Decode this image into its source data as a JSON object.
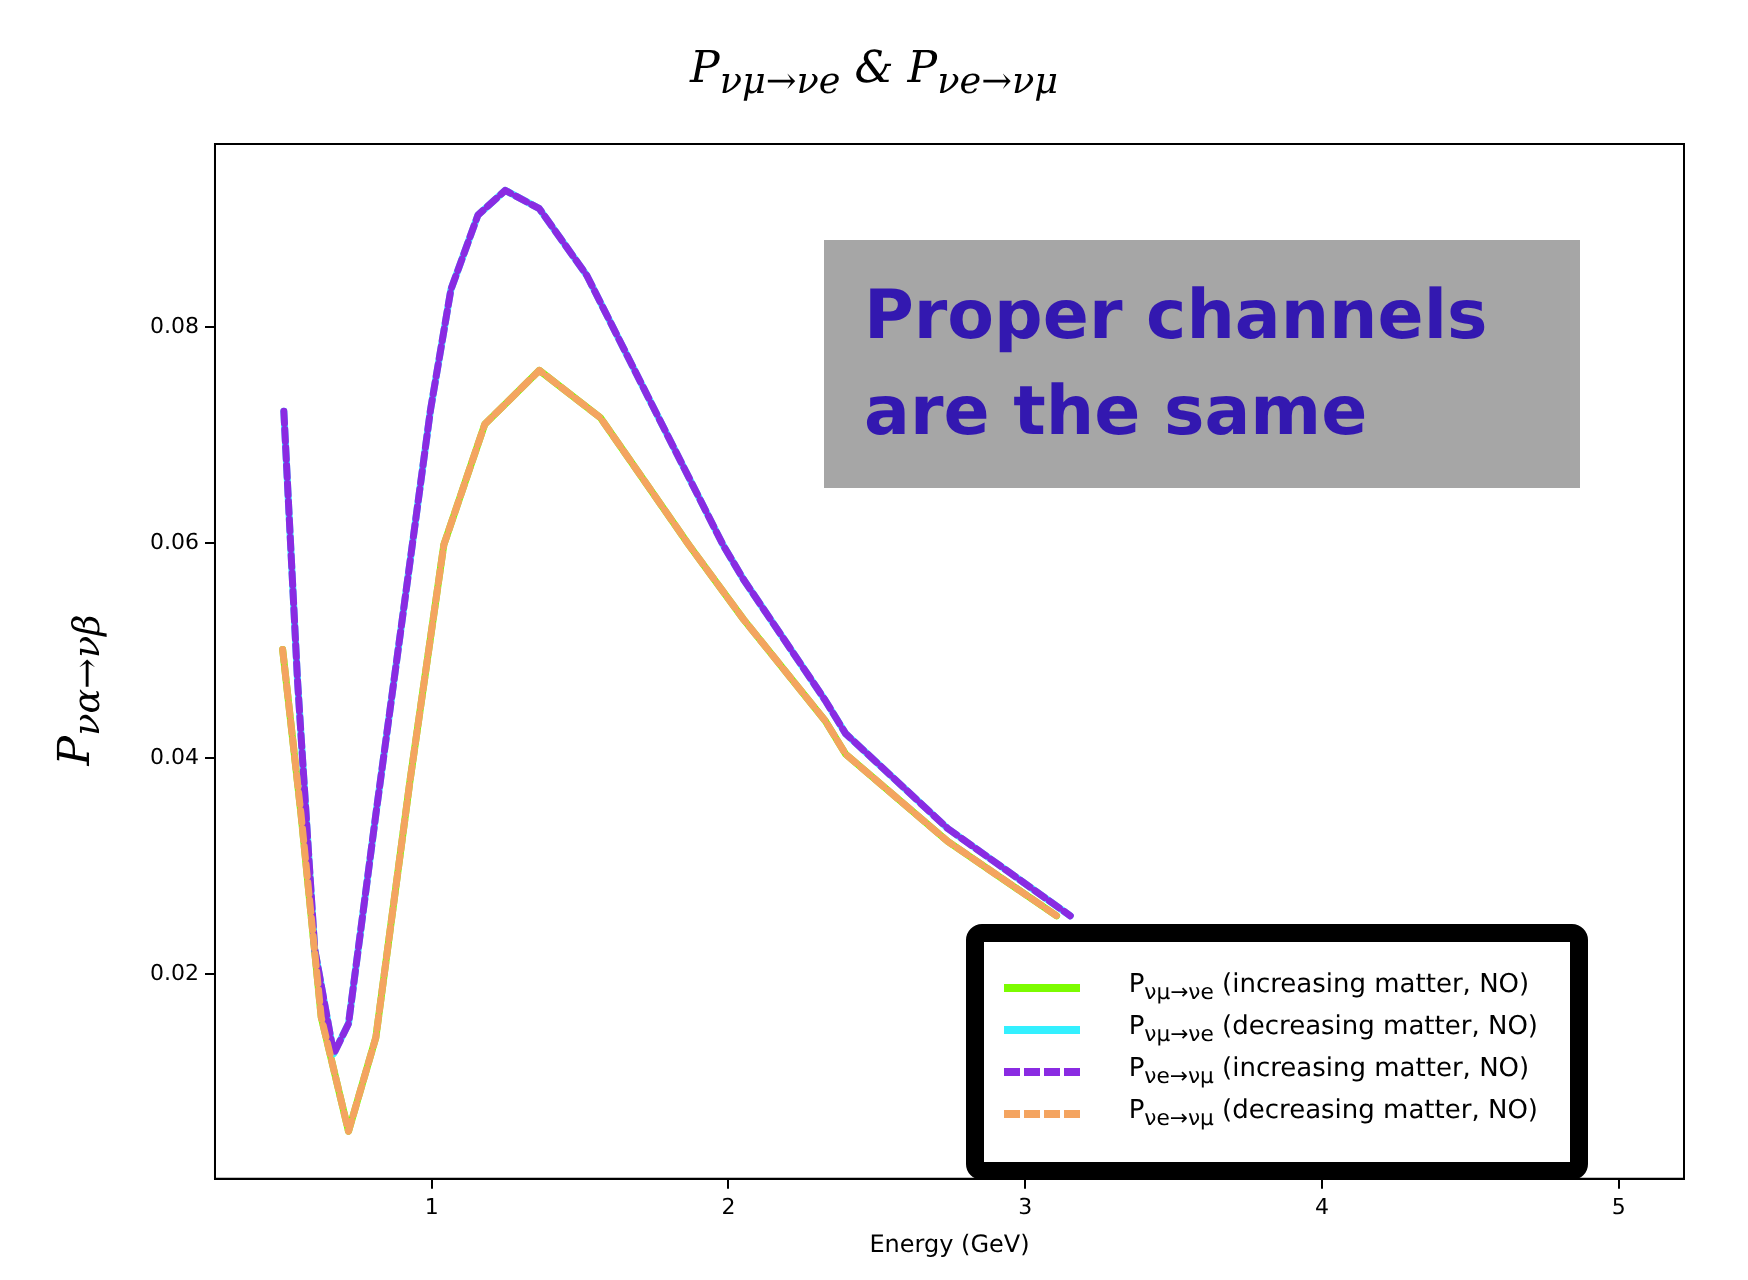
{
  "chart_data": {
    "type": "line",
    "title": "P$_{νμ→νe}$ & P$_{νe→νμ}$",
    "xlabel": "Energy (GeV)",
    "ylabel": "P$_{να→νβ}$",
    "xlim": [
      0.27,
      5.22
    ],
    "ylim": [
      0.001,
      0.097
    ],
    "xticks": [
      1,
      2,
      3,
      4,
      5
    ],
    "yticks": [
      0.02,
      0.04,
      0.06,
      0.08
    ],
    "grid": false,
    "legend": "bottom right",
    "marker": "none",
    "annotations": [
      "Proper channels are the same"
    ],
    "series": [
      {
        "name": "P$_{νμ→νe}$ (increasing matter, NO)",
        "color": "#7cfc00",
        "line_style": "solid",
        "x": [
          0.498,
          0.56,
          0.628,
          0.72,
          0.812,
          0.927,
          1.041,
          1.179,
          1.363,
          1.569,
          1.867,
          2.051,
          2.326,
          2.395,
          2.739,
          3.106
        ],
        "values": [
          0.0501,
          0.0348,
          0.016,
          0.0054,
          0.0141,
          0.0379,
          0.0598,
          0.071,
          0.076,
          0.0716,
          0.0598,
          0.0529,
          0.0435,
          0.0404,
          0.0323,
          0.0254
        ]
      },
      {
        "name": "P$_{νμ→νe}$ (decreasing matter, NO)",
        "color": "#33f0ff",
        "line_style": "solid",
        "x": [
          0.502,
          0.548,
          0.606,
          0.67,
          0.72,
          0.812,
          0.904,
          0.996,
          1.065,
          1.156,
          1.248,
          1.363,
          1.523,
          1.73,
          1.982,
          2.051,
          2.326,
          2.395,
          2.739,
          3.152
        ],
        "values": [
          0.0722,
          0.0473,
          0.0223,
          0.0126,
          0.0154,
          0.0348,
          0.0535,
          0.0723,
          0.0835,
          0.0904,
          0.0927,
          0.091,
          0.0848,
          0.0735,
          0.0598,
          0.0566,
          0.0454,
          0.0423,
          0.0335,
          0.0254
        ]
      },
      {
        "name": "P$_{νe→νμ}$ (increasing matter, NO)",
        "color": "#8a2be2",
        "line_style": "dashed",
        "x": [
          0.502,
          0.548,
          0.606,
          0.67,
          0.72,
          0.812,
          0.904,
          0.996,
          1.065,
          1.156,
          1.248,
          1.363,
          1.523,
          1.73,
          1.982,
          2.051,
          2.326,
          2.395,
          2.739,
          3.152
        ],
        "values": [
          0.0722,
          0.0473,
          0.0223,
          0.0126,
          0.0154,
          0.0348,
          0.0535,
          0.0723,
          0.0835,
          0.0904,
          0.0927,
          0.091,
          0.0848,
          0.0735,
          0.0598,
          0.0566,
          0.0454,
          0.0423,
          0.0335,
          0.0254
        ]
      },
      {
        "name": "P$_{νe→νμ}$ (decreasing matter, NO)",
        "color": "#f4a460",
        "line_style": "dashed",
        "x": [
          0.498,
          0.56,
          0.628,
          0.72,
          0.812,
          0.927,
          1.041,
          1.179,
          1.363,
          1.569,
          1.867,
          2.051,
          2.326,
          2.395,
          2.739,
          3.106
        ],
        "values": [
          0.0501,
          0.0348,
          0.016,
          0.0054,
          0.0141,
          0.0379,
          0.0598,
          0.071,
          0.076,
          0.0716,
          0.0598,
          0.0529,
          0.0435,
          0.0404,
          0.0323,
          0.0254
        ]
      }
    ]
  }
}
